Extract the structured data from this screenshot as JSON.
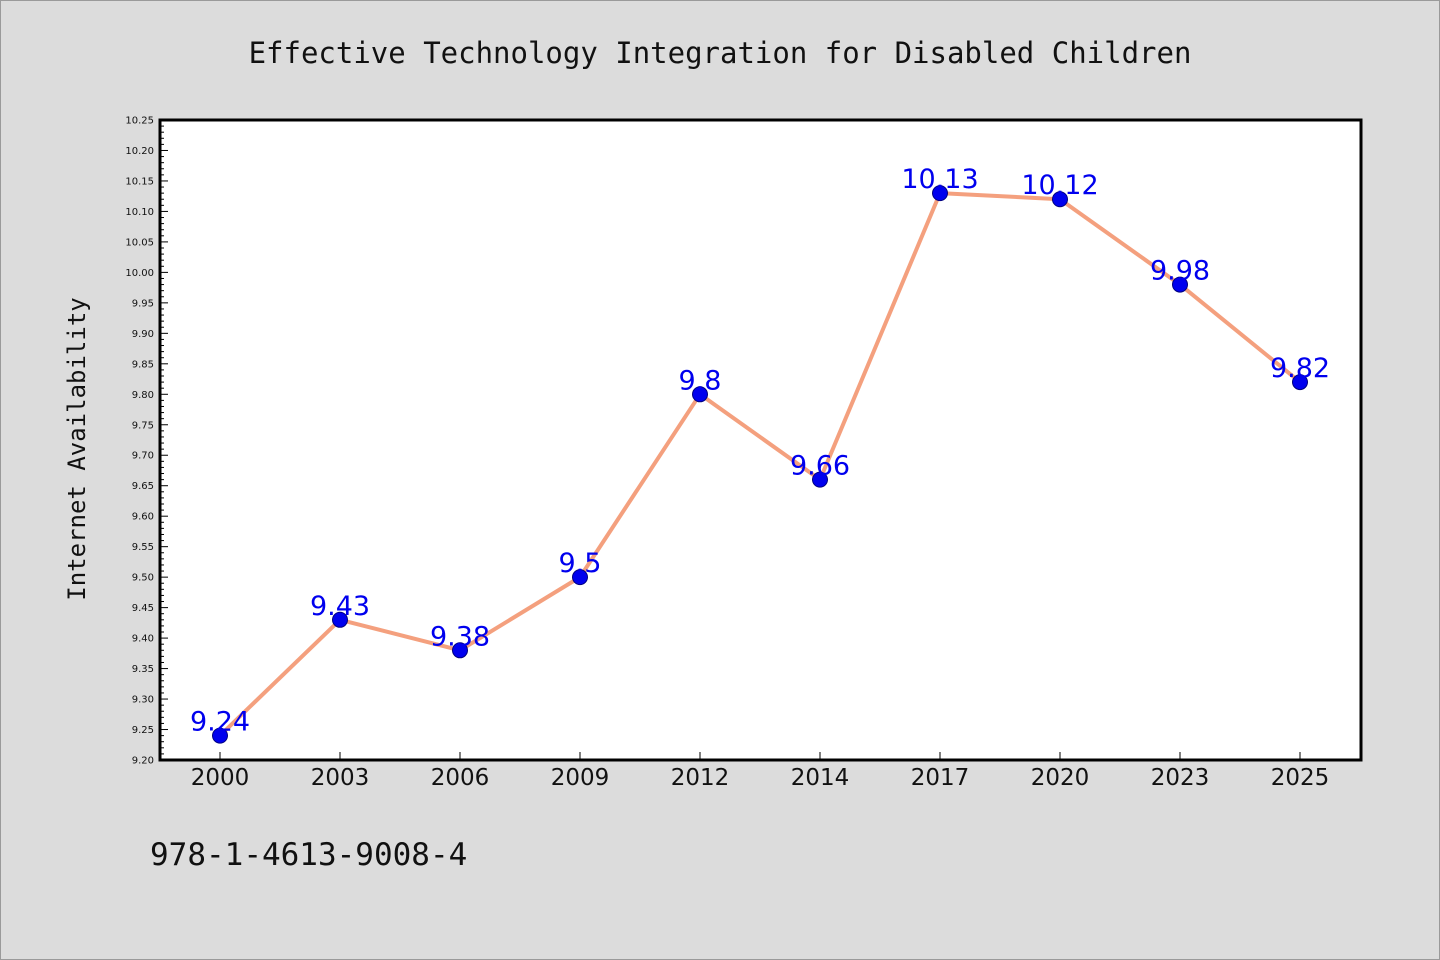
{
  "colors": {
    "background": "#dcdcdc",
    "plot_background": "#ffffff",
    "line": "#f4a07e",
    "marker": "#0000ee",
    "label": "#0000ee",
    "axis": "#000000"
  },
  "chart_data": {
    "type": "line",
    "title": "Effective Technology Integration for Disabled Children",
    "xlabel": "",
    "ylabel": "Internet Availability",
    "categories": [
      "2000",
      "2003",
      "2006",
      "2009",
      "2012",
      "2014",
      "2017",
      "2020",
      "2023",
      "2025"
    ],
    "series": [
      {
        "values": [
          9.24,
          9.43,
          9.38,
          9.5,
          9.8,
          9.66,
          10.13,
          10.12,
          9.98,
          9.82
        ],
        "labels": [
          "9.24",
          "9.43",
          "9.38",
          "9.5",
          "9.8",
          "9.66",
          "10.13",
          "10.12",
          "9.98",
          "9.82"
        ]
      }
    ],
    "ylim": [
      9.2,
      10.25
    ],
    "yticks": [
      "9.20",
      "9.25",
      "9.30",
      "9.35",
      "9.40",
      "9.45",
      "9.50",
      "9.55",
      "9.60",
      "9.65",
      "9.70",
      "9.75",
      "9.80",
      "9.85",
      "9.90",
      "9.95",
      "10.00",
      "10.05",
      "10.10",
      "10.15",
      "10.20",
      "10.25"
    ],
    "grid": false,
    "legend": "none",
    "markers": "circle"
  },
  "caption": "978-1-4613-9008-4"
}
